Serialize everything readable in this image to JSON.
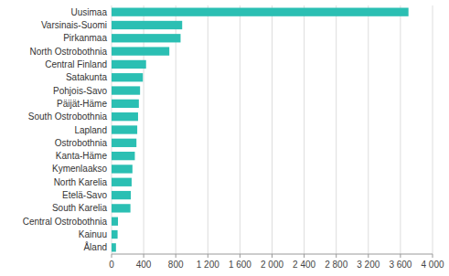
{
  "chart_data": {
    "type": "bar",
    "orientation": "horizontal",
    "categories": [
      "Uusimaa",
      "Varsinais-Suomi",
      "Pirkanmaa",
      "North Ostrobothnia",
      "Central Finland",
      "Satakunta",
      "Pohjois-Savo",
      "Päijät-Häme",
      "South Ostrobothnia",
      "Lapland",
      "Ostrobothnia",
      "Kanta-Häme",
      "Kymenlaakso",
      "North Karelia",
      "Etelä-Savo",
      "South Karelia",
      "Central Ostrobothnia",
      "Kainuu",
      "Åland"
    ],
    "values": [
      3700,
      880,
      860,
      720,
      430,
      390,
      355,
      340,
      330,
      320,
      310,
      290,
      260,
      250,
      240,
      235,
      80,
      75,
      55
    ],
    "color": "#2bbfb3",
    "xlim": [
      0,
      4000
    ],
    "xticks": [
      0,
      400,
      800,
      {
        "value": 1200,
        "label": "1 200"
      },
      {
        "value": 1600,
        "label": "1 600"
      },
      {
        "value": 2000,
        "label": "2 000"
      },
      {
        "value": 2400,
        "label": "2 400"
      },
      {
        "value": 2800,
        "label": "2 800"
      },
      {
        "value": 3200,
        "label": "3 200"
      },
      {
        "value": 3600,
        "label": "3 600"
      },
      {
        "value": 4000,
        "label": "4 000"
      }
    ],
    "grid": true
  }
}
